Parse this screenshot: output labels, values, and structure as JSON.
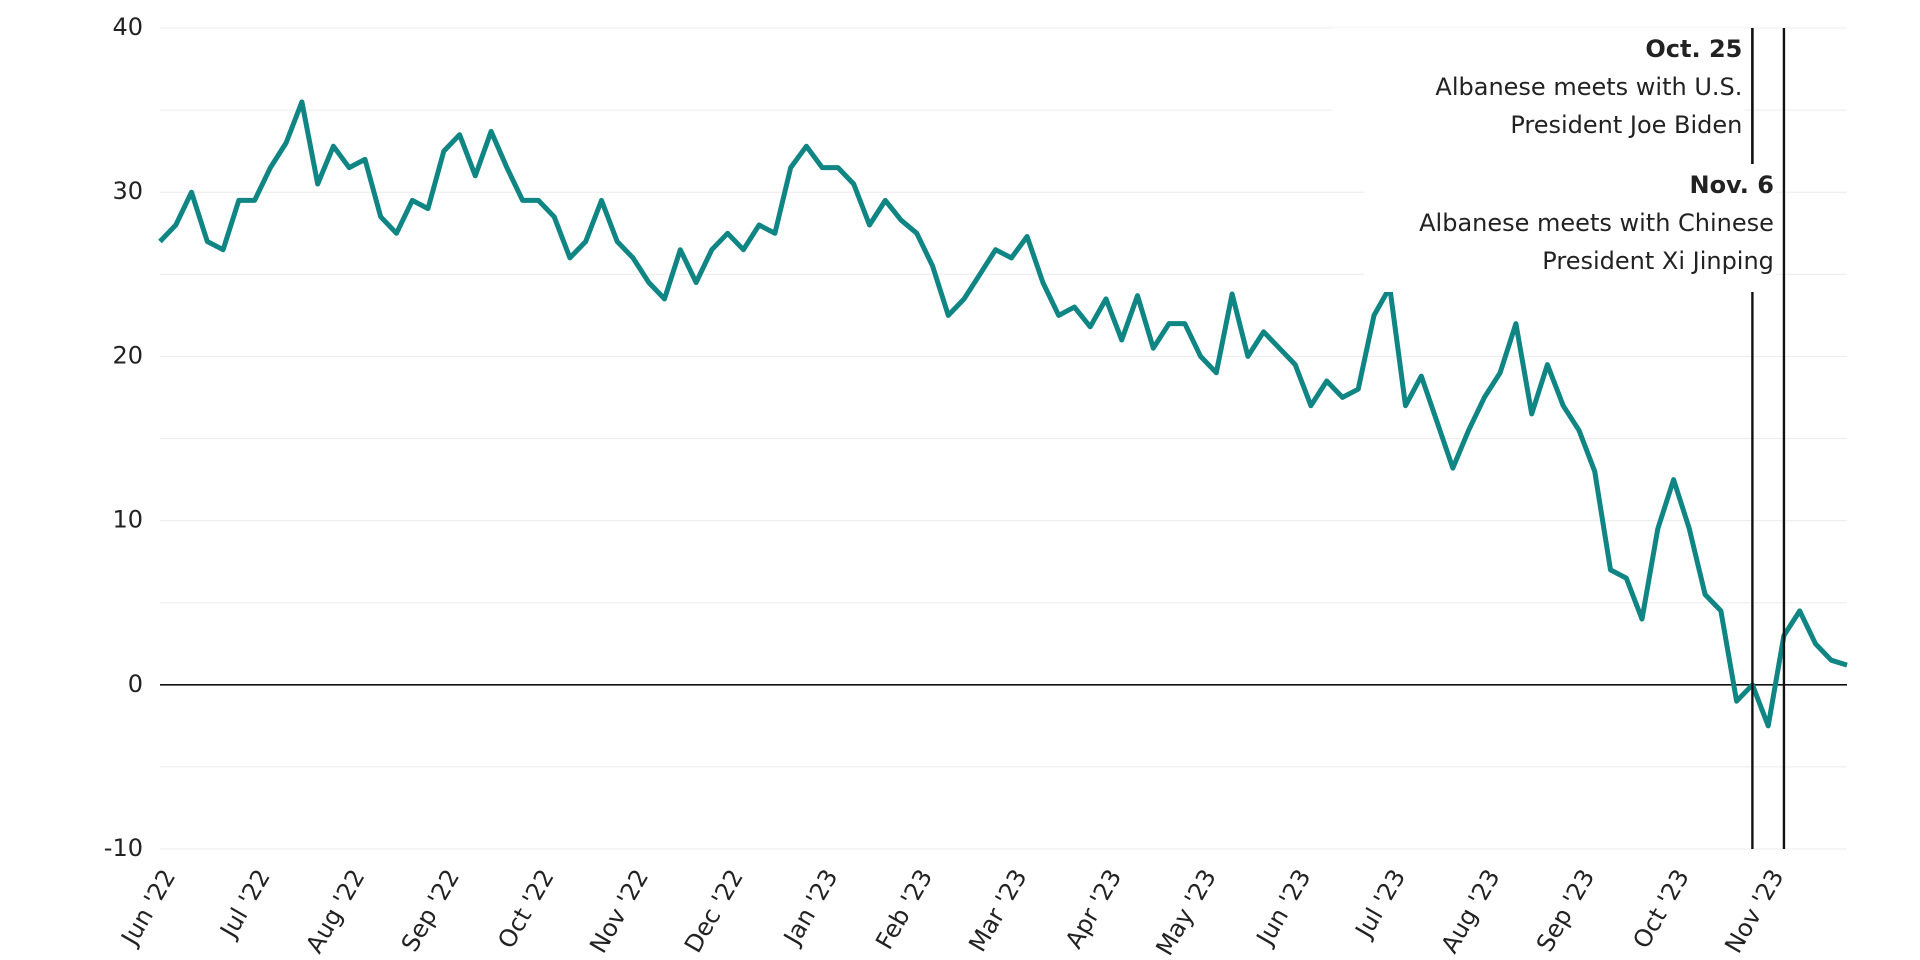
{
  "chart_data": {
    "type": "line",
    "categories": [
      "Jun '22",
      null,
      null,
      null,
      null,
      null,
      "Jul '22",
      null,
      null,
      null,
      null,
      null,
      "Aug '22",
      null,
      null,
      null,
      null,
      null,
      "Sep '22",
      null,
      null,
      null,
      null,
      null,
      "Oct '22",
      null,
      null,
      null,
      null,
      null,
      "Nov '22",
      null,
      null,
      null,
      null,
      null,
      "Dec '22",
      null,
      null,
      null,
      null,
      null,
      "Jan '23",
      null,
      null,
      null,
      null,
      null,
      "Feb '23",
      null,
      null,
      null,
      null,
      null,
      "Mar '23",
      null,
      null,
      null,
      null,
      null,
      "Apr '23",
      null,
      null,
      null,
      null,
      null,
      "May '23",
      null,
      null,
      null,
      null,
      null,
      "Jun '23",
      null,
      null,
      null,
      null,
      null,
      "Jul '23",
      null,
      null,
      null,
      null,
      null,
      "Aug '23",
      null,
      null,
      null,
      null,
      null,
      "Sep '23",
      null,
      null,
      null,
      null,
      null,
      "Oct '23",
      null,
      null,
      null,
      null,
      null,
      "Nov '23",
      null,
      null,
      null,
      null,
      null
    ],
    "series": [
      {
        "color": "#0f8584",
        "values": [
          27,
          28,
          30,
          27,
          26.5,
          29.5,
          29.5,
          31.5,
          33,
          35.5,
          30.5,
          32.8,
          31.5,
          32,
          28.5,
          27.5,
          29.5,
          29,
          32.5,
          33.5,
          31,
          33.7,
          31.5,
          29.5,
          29.5,
          28.5,
          26,
          27,
          29.5,
          27,
          26,
          24.5,
          23.5,
          26.5,
          24.5,
          26.5,
          27.5,
          26.5,
          28,
          27.5,
          31.5,
          32.8,
          31.5,
          31.5,
          30.5,
          28,
          29.5,
          28.3,
          27.5,
          25.5,
          22.5,
          23.5,
          25,
          26.5,
          26,
          27.3,
          24.5,
          22.5,
          23,
          21.8,
          23.5,
          21,
          23.7,
          20.5,
          22,
          22,
          20,
          19,
          23.8,
          20,
          21.5,
          20.5,
          19.5,
          17,
          18.5,
          17.5,
          18,
          22.5,
          24.2,
          17,
          18.8,
          16,
          13.2,
          15.5,
          17.5,
          19,
          22,
          16.5,
          19.5,
          17,
          15.5,
          13,
          7,
          6.5,
          4,
          9.5,
          12.5,
          9.5,
          5.5,
          4.5,
          -1,
          0,
          -2.5,
          3,
          4.5,
          2.5,
          1.5,
          1.2
        ]
      }
    ],
    "ylim": [
      -10,
      40
    ],
    "yticks": [
      -10,
      0,
      10,
      20,
      30,
      40
    ],
    "minor_yticks": [
      -5,
      5,
      15,
      25,
      35
    ],
    "grid": true,
    "annotations": [
      {
        "x_index": 101,
        "label": "Oct. 25",
        "lines": [
          "Albanese meets with U.S.",
          "President Joe Biden"
        ]
      },
      {
        "x_index": 103,
        "label": "Nov. 6",
        "lines": [
          "Albanese meets with Chinese",
          "President Xi Jinping"
        ]
      }
    ]
  }
}
